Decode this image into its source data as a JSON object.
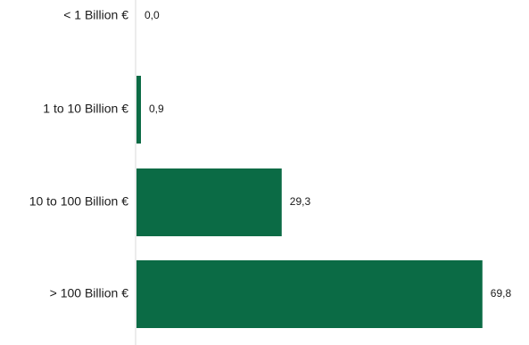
{
  "chart_data": {
    "type": "bar",
    "orientation": "horizontal",
    "categories": [
      "< 1 Billion €",
      "1 to 10 Billion €",
      "10 to 100 Billion €",
      "> 100 Billion €"
    ],
    "values": [
      0.0,
      0.9,
      29.3,
      69.8
    ],
    "value_labels": [
      "0,0",
      "0,9",
      "29,3",
      "69,8"
    ],
    "xlim": [
      0,
      72
    ],
    "grid": false,
    "legend": "none",
    "bar_color": "#0b6b45",
    "axis_color": "#d9d9d9"
  }
}
